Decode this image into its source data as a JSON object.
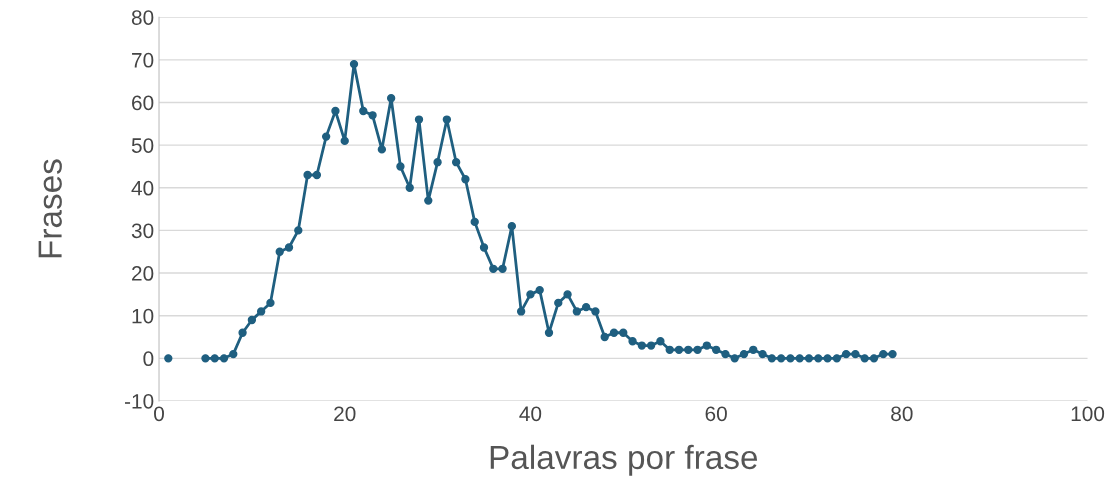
{
  "chart_data": {
    "type": "line",
    "xlabel": "Palavras por frase",
    "ylabel": "Frases",
    "x": [
      1,
      2,
      3,
      4,
      5,
      6,
      7,
      8,
      9,
      10,
      11,
      12,
      13,
      14,
      15,
      16,
      17,
      18,
      19,
      20,
      21,
      22,
      23,
      24,
      25,
      26,
      27,
      28,
      29,
      30,
      31,
      32,
      33,
      34,
      35,
      36,
      37,
      38,
      39,
      40,
      41,
      42,
      43,
      44,
      45,
      46,
      47,
      48,
      49,
      50,
      51,
      52,
      53,
      54,
      55,
      56,
      57,
      58,
      59,
      60,
      61,
      62,
      63,
      64,
      65,
      66,
      67,
      68,
      69,
      70,
      71,
      72,
      73,
      74,
      75,
      76,
      77,
      78,
      79
    ],
    "series": [
      {
        "color": "#1f5f80",
        "values": [
          0,
          null,
          null,
          null,
          0,
          0,
          0,
          1,
          6,
          9,
          11,
          13,
          25,
          26,
          30,
          43,
          43,
          52,
          58,
          51,
          69,
          58,
          57,
          49,
          61,
          45,
          40,
          56,
          37,
          46,
          56,
          46,
          42,
          32,
          26,
          21,
          21,
          31,
          11,
          15,
          16,
          6,
          13,
          15,
          11,
          12,
          11,
          5,
          6,
          6,
          4,
          3,
          3,
          4,
          2,
          2,
          2,
          2,
          3,
          2,
          1,
          0,
          1,
          2,
          1,
          0,
          0,
          0,
          0,
          0,
          0,
          0,
          0,
          1,
          1,
          0,
          0,
          1,
          1
        ]
      }
    ],
    "xlim": [
      0,
      100
    ],
    "xticks": [
      0,
      20,
      40,
      60,
      80,
      100
    ],
    "ylim": [
      -10,
      80
    ],
    "yticks": [
      -10,
      0,
      10,
      20,
      30,
      40,
      50,
      60,
      70,
      80
    ],
    "grid": "y",
    "marker": "circle",
    "line_style": "solid",
    "legend": false
  }
}
